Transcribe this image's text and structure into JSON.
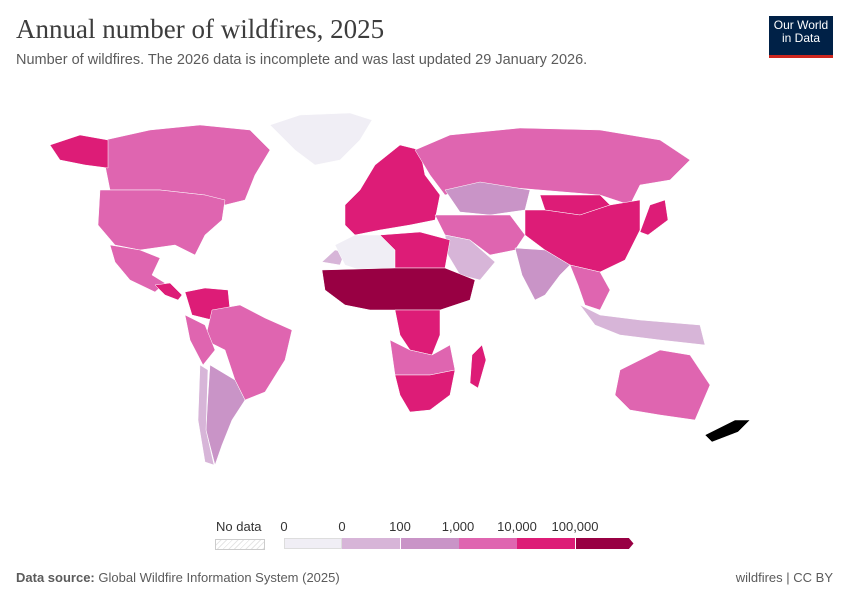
{
  "header": {
    "title": "Annual number of wildfires, 2025",
    "subtitle": "Number of wildfires. The 2026 data is incomplete and was last updated 29 January 2026.",
    "logo": "Our World in Data"
  },
  "legend": {
    "no_data_label": "No data",
    "tick_labels": [
      "0",
      "0",
      "100",
      "1,000",
      "10,000",
      "100,000"
    ],
    "bins": [
      {
        "color": "#f0eef5"
      },
      {
        "color": "#d7b5d8"
      },
      {
        "color": "#c994c7"
      },
      {
        "color": "#df65b0"
      },
      {
        "color": "#dd1c77"
      },
      {
        "color": "#980043"
      }
    ]
  },
  "map": {
    "regions": [
      {
        "name": "Greenland",
        "color": "#f0eef5"
      },
      {
        "name": "Canada",
        "color": "#df65b0"
      },
      {
        "name": "United States",
        "color": "#dd1c77"
      },
      {
        "name": "Mexico",
        "color": "#df65b0"
      },
      {
        "name": "Central America",
        "color": "#df65b0"
      },
      {
        "name": "Brazil",
        "color": "#dd1c77"
      },
      {
        "name": "Northern South America",
        "color": "#dd1c77"
      },
      {
        "name": "Peru",
        "color": "#df65b0"
      },
      {
        "name": "Argentina",
        "color": "#df65b0"
      },
      {
        "name": "Chile",
        "color": "#c994c7"
      },
      {
        "name": "Europe",
        "color": "#d7b5d8"
      },
      {
        "name": "Russia",
        "color": "#dd1c77"
      },
      {
        "name": "Kazakhstan",
        "color": "#df65b0"
      },
      {
        "name": "Mongolia",
        "color": "#c994c7"
      },
      {
        "name": "China",
        "color": "#dd1c77"
      },
      {
        "name": "India",
        "color": "#dd1c77"
      },
      {
        "name": "Middle East",
        "color": "#df65b0"
      },
      {
        "name": "Saudi Arabia",
        "color": "#d7b5d8"
      },
      {
        "name": "Algeria",
        "color": "#c994c7"
      },
      {
        "name": "Libya and Egypt",
        "color": "#d7b5d8"
      },
      {
        "name": "Western Sahara",
        "color": "#f0eef5"
      },
      {
        "name": "Sahel and Central Africa",
        "color": "#dd1c77"
      },
      {
        "name": "Democratic Republic of Congo",
        "color": "#980043"
      },
      {
        "name": "Angola and Zambia",
        "color": "#dd1c77"
      },
      {
        "name": "Southern Africa",
        "color": "#df65b0"
      },
      {
        "name": "Madagascar",
        "color": "#dd1c77"
      },
      {
        "name": "Southeast Asia",
        "color": "#dd1c77"
      },
      {
        "name": "Indonesia",
        "color": "#df65b0"
      },
      {
        "name": "Japan",
        "color": "#d7b5d8"
      },
      {
        "name": "Australia",
        "color": "#dd1c77"
      },
      {
        "name": "New Zealand",
        "color": "#df65b0"
      }
    ]
  },
  "footer": {
    "source_label": "Data source:",
    "source": "Global Wildfire Information System (2025)",
    "right": "wildfires | CC BY"
  }
}
